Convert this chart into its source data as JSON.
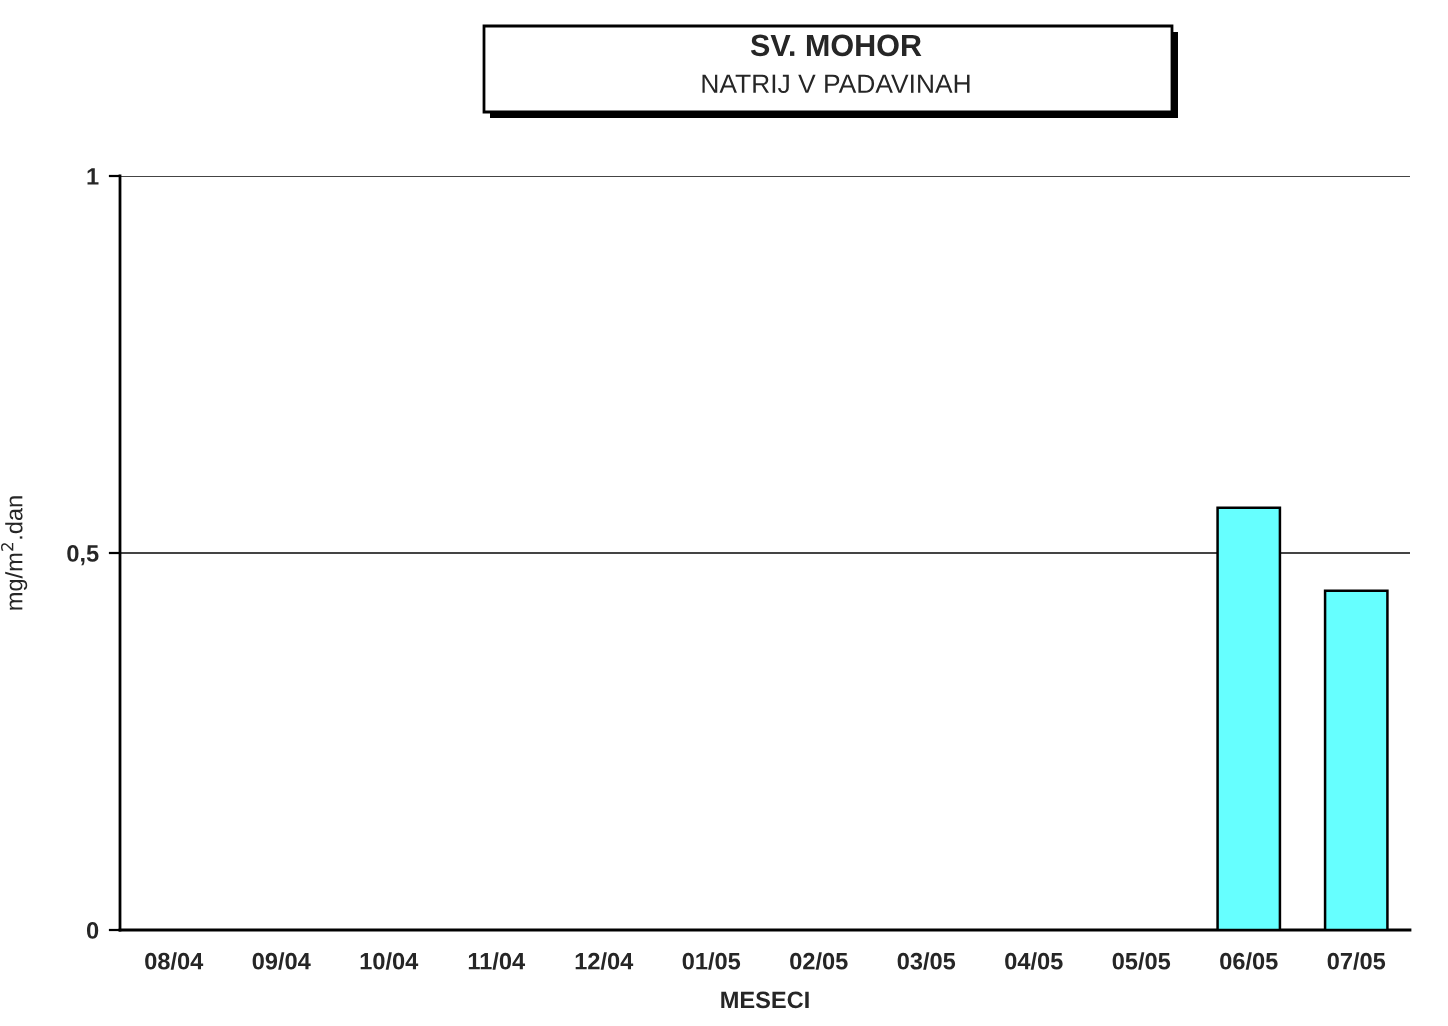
{
  "chart_data": {
    "type": "bar",
    "title": "SV. MOHOR",
    "subtitle": "NATRIJ V PADAVINAH",
    "xlabel": "MESECI",
    "ylabel": "mg/m$^{2}$.dan",
    "categories": [
      "08/04",
      "09/04",
      "10/04",
      "11/04",
      "12/04",
      "01/05",
      "02/05",
      "03/05",
      "04/05",
      "05/05",
      "06/05",
      "07/05"
    ],
    "series": [
      {
        "color": "#66ffff",
        "values": [
          null,
          null,
          null,
          null,
          null,
          null,
          null,
          null,
          null,
          null,
          0.56,
          0.45
        ]
      }
    ],
    "ylim": [
      0,
      1
    ],
    "yticks": [
      0,
      {
        "value": 0.5,
        "label": "0,5"
      },
      1
    ],
    "grid": "y"
  }
}
